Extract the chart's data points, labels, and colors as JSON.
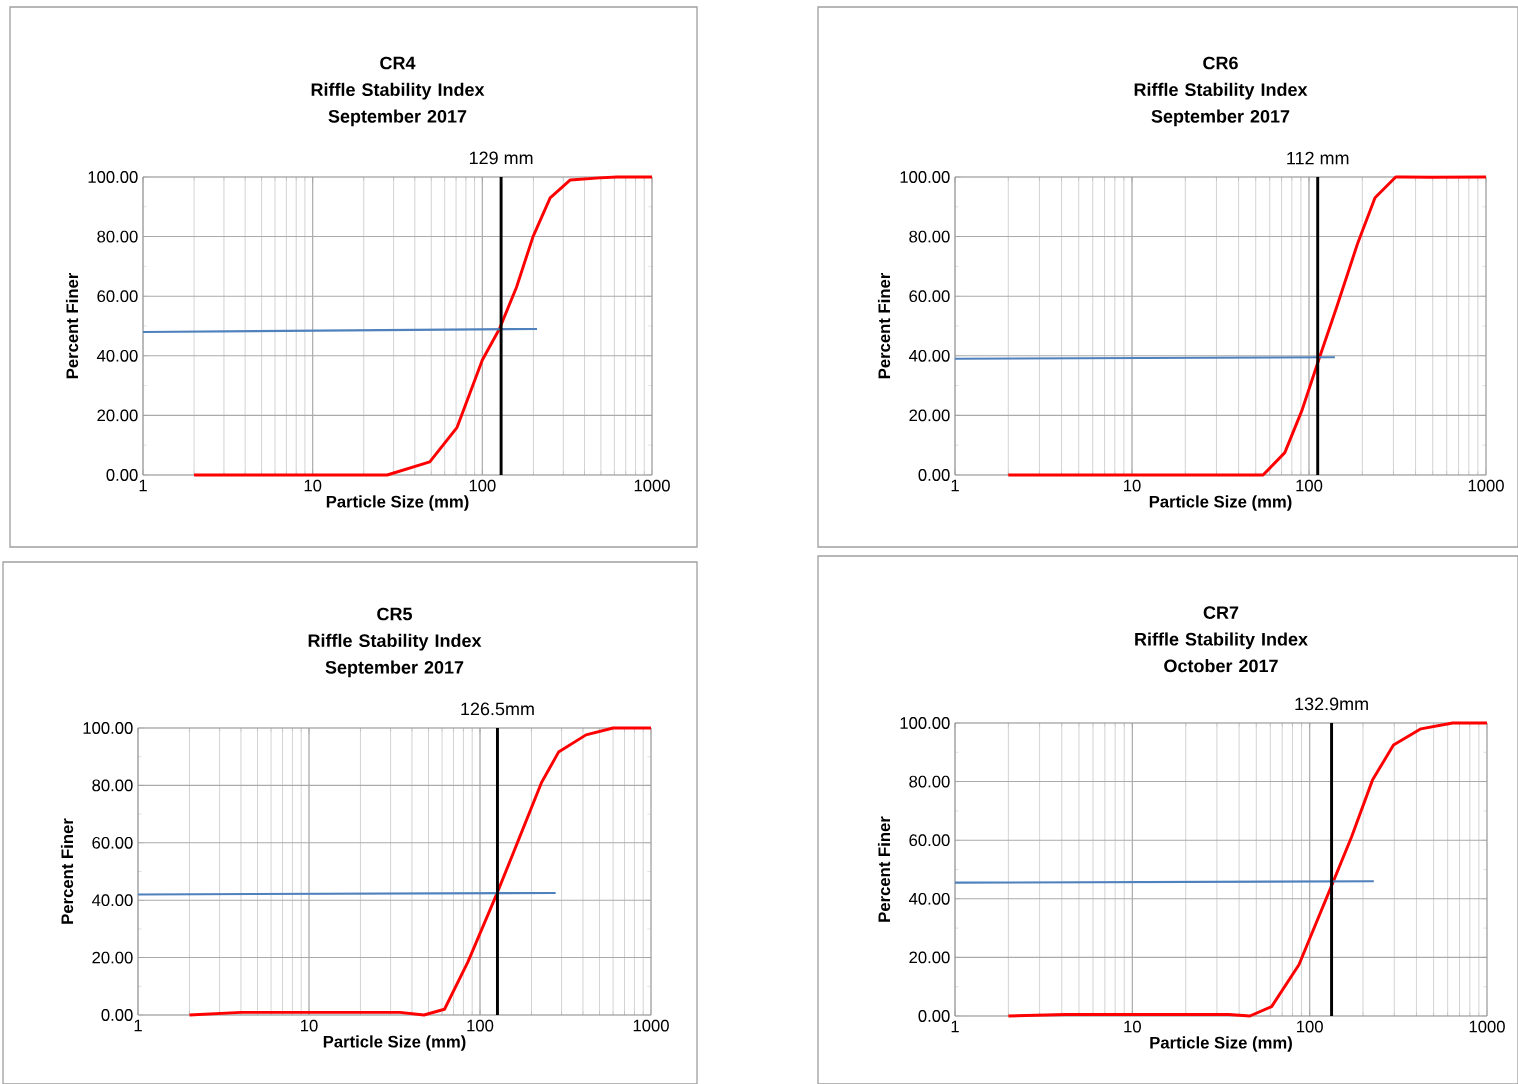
{
  "chart_data": [
    {
      "type": "line",
      "title": "CR4",
      "subtitle": "Riffle Stability Index",
      "annotations": [
        "September 2017"
      ],
      "xlabel": "Particle Size (mm)",
      "ylabel": "Percent Finer",
      "log": "x",
      "grid": true,
      "marker": "none",
      "xlim": [
        1,
        1000
      ],
      "xticks": [
        1,
        10,
        100,
        1000
      ],
      "ylim": [
        0,
        100
      ],
      "yticks": [
        {
          "value": 0,
          "label": "0.00"
        },
        {
          "value": 20,
          "label": "20.00"
        },
        {
          "value": 40,
          "label": "40.00"
        },
        {
          "value": 60,
          "label": "60.00"
        },
        {
          "value": 80,
          "label": "80.00"
        },
        {
          "value": 100,
          "label": "100.00"
        }
      ],
      "series": [
        {
          "color": "#ff0000",
          "x": [
            2,
            10,
            27.5,
            49,
            71,
            100,
            126,
            159,
            199,
            251,
            330,
            490,
            620,
            1000
          ],
          "values": [
            0,
            0,
            0,
            4.4,
            16,
            38.6,
            49,
            63,
            80,
            93,
            99,
            99.7,
            100,
            100
          ]
        },
        {
          "color": "#4f81bd",
          "x": [
            1,
            210
          ],
          "values": [
            48,
            49
          ]
        }
      ],
      "ref_lines": [
        {
          "axis": "x",
          "value": 129,
          "label": "129 mm",
          "color": "#000000"
        }
      ]
    },
    {
      "type": "line",
      "title": "CR6",
      "subtitle": "Riffle Stability Index",
      "annotations": [
        "September 2017"
      ],
      "xlabel": "Particle Size (mm)",
      "ylabel": "Percent Finer",
      "log": "x",
      "grid": true,
      "marker": "none",
      "xlim": [
        1,
        1000
      ],
      "xticks": [
        1,
        10,
        100,
        1000
      ],
      "ylim": [
        0,
        100
      ],
      "yticks": [
        {
          "value": 0,
          "label": "0.00"
        },
        {
          "value": 20,
          "label": "20.00"
        },
        {
          "value": 40,
          "label": "40.00"
        },
        {
          "value": 60,
          "label": "60.00"
        },
        {
          "value": 80,
          "label": "80.00"
        },
        {
          "value": 100,
          "label": "100.00"
        }
      ],
      "series": [
        {
          "color": "#ff0000",
          "x": [
            2,
            10,
            30,
            55,
            73,
            91,
            114,
            144,
            188,
            236,
            309,
            340,
            489,
            1000
          ],
          "values": [
            0,
            0,
            0,
            0,
            7.5,
            21.5,
            39,
            56.7,
            77.6,
            93,
            100,
            100,
            99.9,
            100
          ]
        },
        {
          "color": "#4f81bd",
          "x": [
            1,
            140
          ],
          "values": [
            39,
            39.5
          ]
        }
      ],
      "ref_lines": [
        {
          "axis": "x",
          "value": 112,
          "label": "112 mm",
          "color": "#000000"
        }
      ]
    },
    {
      "type": "line",
      "title": "CR5",
      "subtitle": "Riffle Stability Index",
      "annotations": [
        "September 2017"
      ],
      "xlabel": "Particle Size (mm)",
      "ylabel": "Percent Finer",
      "log": "x",
      "grid": true,
      "marker": "none",
      "xlim": [
        1,
        1000
      ],
      "xticks": [
        1,
        10,
        100,
        1000
      ],
      "ylim": [
        0,
        100
      ],
      "yticks": [
        {
          "value": 0,
          "label": "0.00"
        },
        {
          "value": 20,
          "label": "20.00"
        },
        {
          "value": 40,
          "label": "40.00"
        },
        {
          "value": 60,
          "label": "60.00"
        },
        {
          "value": 80,
          "label": "80.00"
        },
        {
          "value": 100,
          "label": "100.00"
        }
      ],
      "series": [
        {
          "color": "#ff0000",
          "x": [
            2,
            4,
            34,
            47,
            62,
            85,
            125,
            168,
            229,
            288,
            417,
            600,
            1000
          ],
          "values": [
            0,
            0.9,
            0.9,
            0,
            2,
            18.5,
            42,
            61,
            81,
            91.6,
            97.6,
            100,
            100
          ]
        },
        {
          "color": "#4f81bd",
          "x": [
            1,
            277
          ],
          "values": [
            42,
            42.5
          ]
        }
      ],
      "ref_lines": [
        {
          "axis": "x",
          "value": 126.5,
          "label": "126.5mm",
          "color": "#000000"
        }
      ]
    },
    {
      "type": "line",
      "title": "CR7",
      "subtitle": "Riffle Stability Index",
      "annotations": [
        "October 2017"
      ],
      "xlabel": "Particle Size (mm)",
      "ylabel": "Percent Finer",
      "log": "x",
      "grid": true,
      "marker": "none",
      "xlim": [
        1,
        1000
      ],
      "xticks": [
        1,
        10,
        100,
        1000
      ],
      "ylim": [
        0,
        100
      ],
      "yticks": [
        {
          "value": 0,
          "label": "0.00"
        },
        {
          "value": 20,
          "label": "20.00"
        },
        {
          "value": 40,
          "label": "40.00"
        },
        {
          "value": 60,
          "label": "60.00"
        },
        {
          "value": 80,
          "label": "80.00"
        },
        {
          "value": 100,
          "label": "100.00"
        }
      ],
      "series": [
        {
          "color": "#ff0000",
          "x": [
            2,
            4.2,
            35,
            46,
            61,
            87,
            134,
            172,
            226,
            297,
            424,
            640,
            1000
          ],
          "values": [
            0,
            0.5,
            0.5,
            0,
            3.2,
            17.5,
            45,
            61,
            80.5,
            92.5,
            98,
            100,
            100
          ]
        },
        {
          "color": "#4f81bd",
          "x": [
            1,
            230
          ],
          "values": [
            45.5,
            46
          ]
        }
      ],
      "ref_lines": [
        {
          "axis": "x",
          "value": 132.9,
          "label": "132.9mm",
          "color": "#000000"
        }
      ]
    }
  ]
}
